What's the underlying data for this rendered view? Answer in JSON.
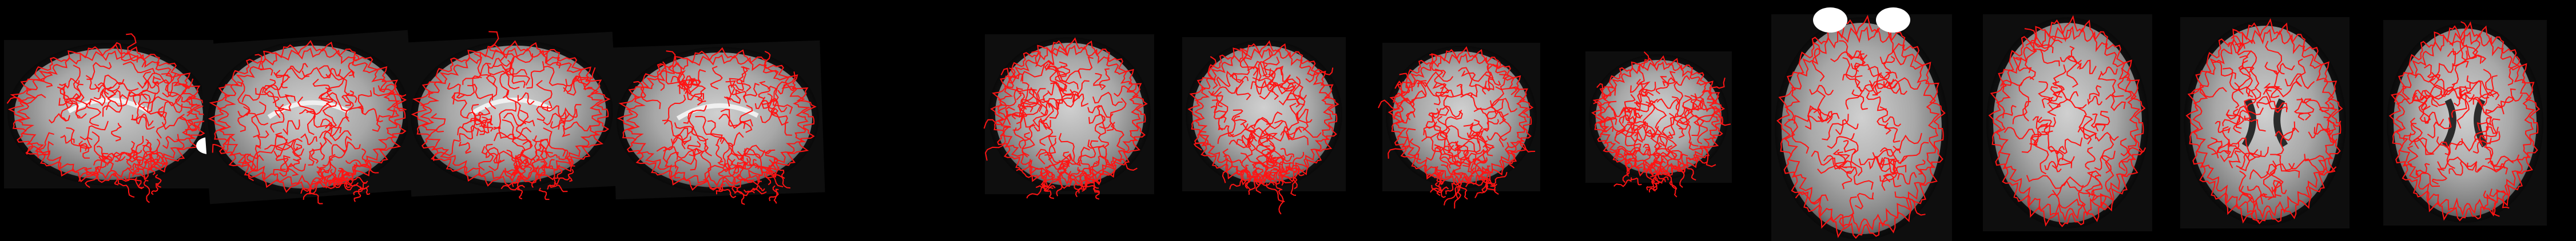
{
  "figure": {
    "kind": "brain-mri-registration-mosaic",
    "background_color": "#000000",
    "tissue_color": "#b8b8b8",
    "contour_color": "#ff1414",
    "panels": [
      {
        "view": "sagittal",
        "index": 1
      },
      {
        "view": "sagittal",
        "index": 2
      },
      {
        "view": "sagittal",
        "index": 3
      },
      {
        "view": "sagittal",
        "index": 4
      },
      {
        "view": "coronal",
        "index": 1
      },
      {
        "view": "coronal",
        "index": 2
      },
      {
        "view": "coronal",
        "index": 3
      },
      {
        "view": "coronal",
        "index": 4
      },
      {
        "view": "axial",
        "index": 1
      },
      {
        "view": "axial",
        "index": 2
      },
      {
        "view": "axial",
        "index": 3
      },
      {
        "view": "axial",
        "index": 4
      }
    ]
  }
}
